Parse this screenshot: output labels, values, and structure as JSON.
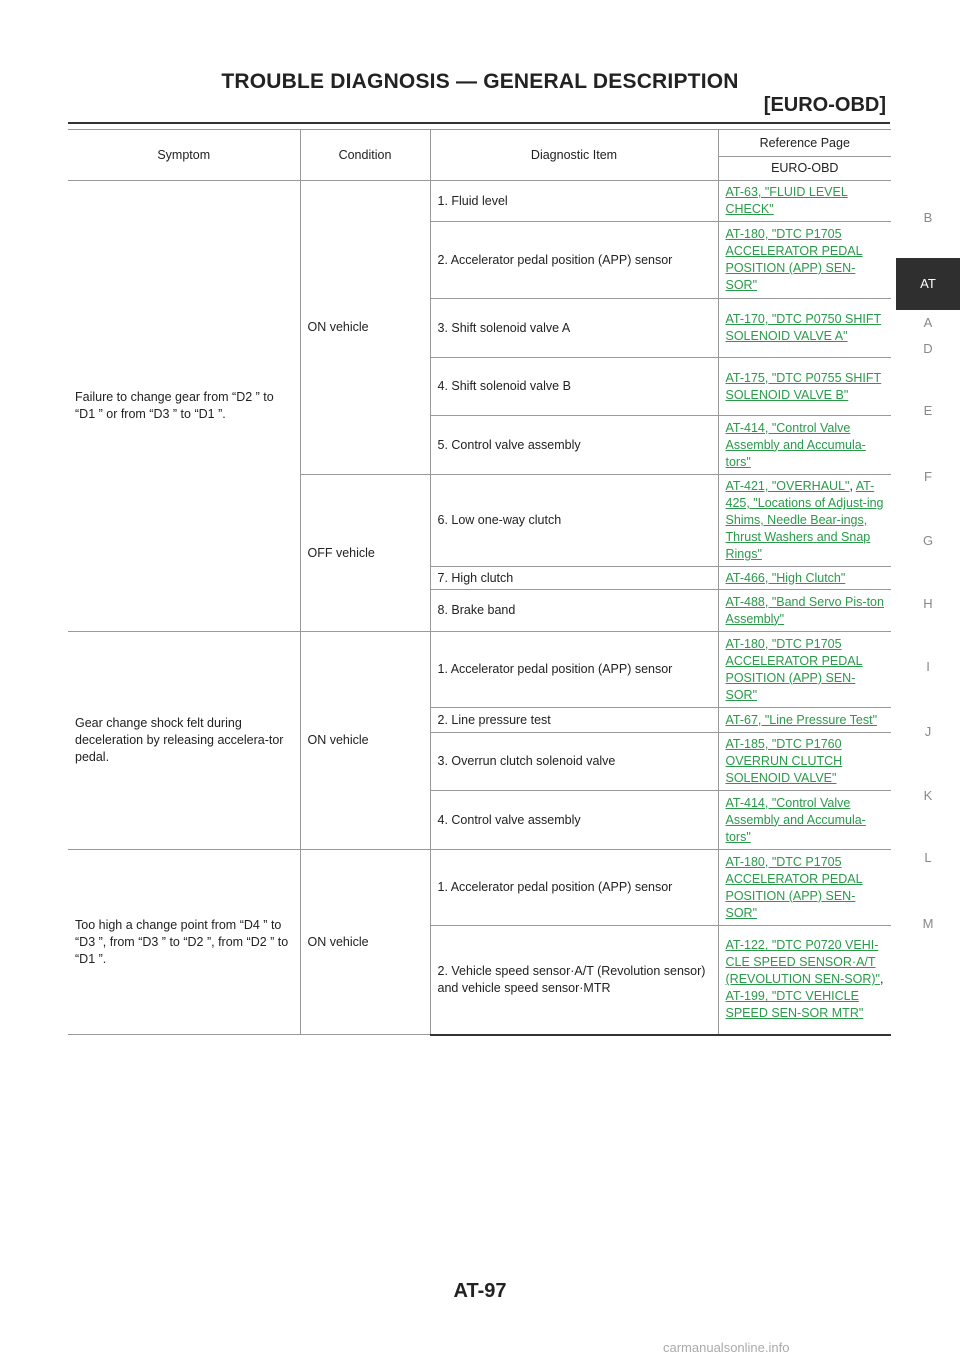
{
  "header": {
    "title": "TROUBLE DIAGNOSIS — GENERAL DESCRIPTION",
    "subtitle": "[EURO-OBD]"
  },
  "side_index": [
    "A",
    "B",
    "AT",
    "D",
    "E",
    "F",
    "G",
    "H",
    "I",
    "J",
    "K",
    "L",
    "M"
  ],
  "side_index_active": "AT",
  "table": {
    "headers": {
      "symptom": "Symptom",
      "condition": "Condition",
      "item": "Diagnostic Item",
      "reference": "Reference Page",
      "reference_sub": "EURO-OBD"
    },
    "groups": [
      {
        "symptom": "Failure to change gear from “D2 ” to “D1 ” or from “D3 ” to “D1 ”.",
        "conditions": [
          {
            "condition": "ON vehicle",
            "items": [
              {
                "item": "1. Fluid level",
                "refs": [
                  "AT-63, \"FLUID LEVEL CHECK\""
                ]
              },
              {
                "item": "2. Accelerator pedal position (APP) sensor",
                "refs": [
                  "AT-180, \"DTC P1705 ACCELERATOR PEDAL POSITION (APP) SEN-SOR\""
                ]
              },
              {
                "item": "3. Shift solenoid valve A",
                "refs": [
                  "AT-170, \"DTC P0750 SHIFT SOLENOID VALVE A\""
                ]
              },
              {
                "item": "4. Shift solenoid valve B",
                "refs": [
                  "AT-175, \"DTC P0755 SHIFT SOLENOID VALVE B\""
                ]
              },
              {
                "item": "5. Control valve assembly",
                "refs": [
                  "AT-414, \"Control Valve Assembly and Accumula-tors\""
                ]
              }
            ]
          },
          {
            "condition": "OFF vehicle",
            "items": [
              {
                "item": "6. Low one-way clutch",
                "refs": [
                  "AT-421, \"OVERHAUL\"",
                  "AT-425, \"Locations of Adjust-ing Shims, Needle Bear-ings, Thrust Washers and Snap Rings\""
                ]
              },
              {
                "item": "7. High clutch",
                "refs": [
                  "AT-466, \"High Clutch\""
                ]
              },
              {
                "item": "8. Brake band",
                "refs": [
                  "AT-488, \"Band Servo Pis-ton Assembly\""
                ]
              }
            ]
          }
        ]
      },
      {
        "symptom": "Gear change shock felt during deceleration by releasing accelera-tor pedal.",
        "conditions": [
          {
            "condition": "ON vehicle",
            "items": [
              {
                "item": "1. Accelerator pedal position (APP) sensor",
                "refs": [
                  "AT-180, \"DTC P1705 ACCELERATOR PEDAL POSITION (APP) SEN-SOR\""
                ]
              },
              {
                "item": "2. Line pressure test",
                "refs": [
                  "AT-67, \"Line Pressure Test\""
                ]
              },
              {
                "item": "3. Overrun clutch solenoid valve",
                "refs": [
                  "AT-185, \"DTC P1760 OVERRUN CLUTCH SOLENOID VALVE\""
                ]
              },
              {
                "item": "4. Control valve assembly",
                "refs": [
                  "AT-414, \"Control Valve Assembly and Accumula-tors\""
                ]
              }
            ]
          }
        ]
      },
      {
        "symptom": "Too high a change point from “D4 ” to “D3 ”, from “D3 ” to “D2 ”, from “D2 ” to “D1 ”.",
        "conditions": [
          {
            "condition": "ON vehicle",
            "items": [
              {
                "item": "1. Accelerator pedal position (APP) sensor",
                "refs": [
                  "AT-180, \"DTC P1705 ACCELERATOR PEDAL POSITION (APP) SEN-SOR\""
                ]
              },
              {
                "item": "2. Vehicle speed sensor·A/T (Revolution sensor) and vehicle speed sensor·MTR",
                "refs": [
                  "AT-122, \"DTC P0720 VEHI-CLE SPEED SENSOR·A/T (REVOLUTION SEN-SOR)\"",
                  "AT-199, \"DTC VEHICLE SPEED SEN-SOR MTR\""
                ]
              }
            ]
          }
        ]
      }
    ]
  },
  "page_number": "AT-97",
  "footer": "carmanualsonline.info",
  "colors": {
    "link": "#2a9a4a",
    "tab_active_bg": "#2f2f2f"
  }
}
